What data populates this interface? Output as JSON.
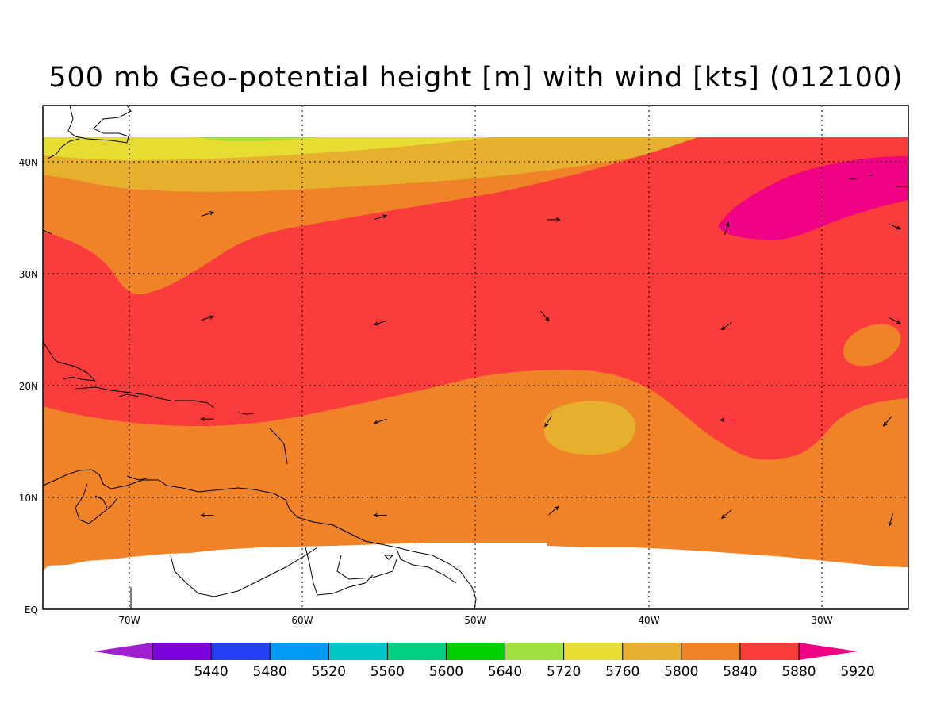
{
  "title": "500 mb Geo-potential height [m] with wind [kts] (012100)",
  "map": {
    "region": "Tropical North Atlantic / Caribbean",
    "lon_range": [
      -75,
      -25
    ],
    "lat_range": [
      0,
      45
    ],
    "lon_labels": [
      "70W",
      "60W",
      "50W",
      "40W",
      "30W"
    ],
    "lat_labels": [
      "40N",
      "30N",
      "20N",
      "10N",
      "EQ"
    ],
    "grid": "dotted"
  },
  "colorbar": {
    "labels": [
      "5440",
      "5480",
      "5520",
      "5560",
      "5600",
      "5640",
      "5720",
      "5760",
      "5800",
      "5840",
      "5880",
      "5920"
    ],
    "colors": [
      "#a020d0",
      "#7a00dc",
      "#2340f5",
      "#009bf5",
      "#00c8c8",
      "#00d080",
      "#00d000",
      "#a0e040",
      "#e6dc32",
      "#e6af2d",
      "#f08228",
      "#fa3c3c",
      "#f00082"
    ]
  },
  "fill_colors": {
    "c5760": "#a0e040",
    "c5800": "#e6dc32",
    "c5840": "#e6af2d",
    "c5880": "#f08228",
    "c5920": "#fa3c3c",
    "c5960": "#f00082"
  },
  "wind_vectors": [
    {
      "lon": -65.5,
      "lat": 35.3,
      "u": 0.9,
      "v": 0.3
    },
    {
      "lon": -55.5,
      "lat": 35.0,
      "u": 0.9,
      "v": 0.3
    },
    {
      "lon": -45.5,
      "lat": 34.8,
      "u": 1.0,
      "v": 0.0
    },
    {
      "lon": -35.5,
      "lat": 34.0,
      "u": 0.3,
      "v": 1.0
    },
    {
      "lon": -25.8,
      "lat": 34.2,
      "u": 0.9,
      "v": -0.4
    },
    {
      "lon": -65.5,
      "lat": 26.0,
      "u": 0.9,
      "v": 0.3
    },
    {
      "lon": -55.5,
      "lat": 25.6,
      "u": -0.9,
      "v": -0.3
    },
    {
      "lon": -46.0,
      "lat": 26.2,
      "u": 0.6,
      "v": -0.7
    },
    {
      "lon": -35.5,
      "lat": 25.3,
      "u": -0.7,
      "v": -0.5
    },
    {
      "lon": -25.8,
      "lat": 25.8,
      "u": 0.8,
      "v": -0.4
    },
    {
      "lon": -65.5,
      "lat": 17.0,
      "u": -1.0,
      "v": 0.0
    },
    {
      "lon": -55.5,
      "lat": 16.8,
      "u": -0.9,
      "v": -0.3
    },
    {
      "lon": -45.8,
      "lat": 16.8,
      "u": -0.5,
      "v": -0.8
    },
    {
      "lon": -35.5,
      "lat": 16.9,
      "u": -1.0,
      "v": 0.0
    },
    {
      "lon": -26.2,
      "lat": 16.8,
      "u": -0.6,
      "v": -0.7
    },
    {
      "lon": -65.5,
      "lat": 8.4,
      "u": -1.0,
      "v": 0.0
    },
    {
      "lon": -55.5,
      "lat": 8.4,
      "u": -1.0,
      "v": 0.0
    },
    {
      "lon": -45.5,
      "lat": 8.8,
      "u": 0.7,
      "v": 0.6
    },
    {
      "lon": -35.5,
      "lat": 8.5,
      "u": -0.7,
      "v": -0.6
    },
    {
      "lon": -26.0,
      "lat": 8.0,
      "u": -0.3,
      "v": -1.0
    }
  ]
}
